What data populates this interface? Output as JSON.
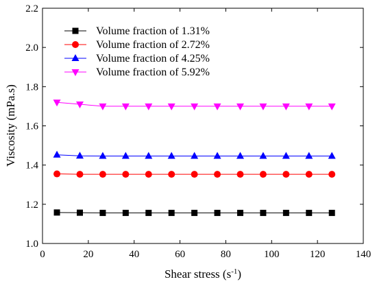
{
  "chart_data": {
    "type": "line",
    "title": "",
    "xlabel": "Shear stress (s",
    "xlabel_sup": "-1",
    "xlabel_suffix": ")",
    "ylabel": "Viscosity (mPa.s)",
    "xlim": [
      0,
      140
    ],
    "ylim": [
      1.0,
      2.2
    ],
    "xticks": [
      0,
      20,
      40,
      60,
      80,
      100,
      120,
      140
    ],
    "yticks": [
      1.0,
      1.2,
      1.4,
      1.6,
      1.8,
      2.0,
      2.2
    ],
    "grid": false,
    "legend_position": "top-left",
    "x": [
      6.3,
      16.3,
      26.3,
      36.3,
      46.3,
      56.3,
      66.3,
      76.3,
      86.3,
      96.3,
      106.3,
      116.3,
      126.3
    ],
    "series": [
      {
        "name": "Volume fraction of 1.31%",
        "color": "#000000",
        "marker": "square",
        "values": [
          1.158,
          1.157,
          1.156,
          1.156,
          1.156,
          1.156,
          1.156,
          1.156,
          1.156,
          1.156,
          1.156,
          1.156,
          1.156
        ]
      },
      {
        "name": "Volume fraction of 2.72%",
        "color": "#ff0000",
        "marker": "circle",
        "values": [
          1.355,
          1.353,
          1.353,
          1.353,
          1.353,
          1.353,
          1.353,
          1.353,
          1.353,
          1.353,
          1.353,
          1.353,
          1.353
        ]
      },
      {
        "name": "Volume fraction of 4.25%",
        "color": "#0000ff",
        "marker": "triangle-up",
        "values": [
          1.452,
          1.447,
          1.446,
          1.446,
          1.446,
          1.446,
          1.446,
          1.446,
          1.446,
          1.446,
          1.446,
          1.446,
          1.446
        ]
      },
      {
        "name": "Volume fraction of 5.92%",
        "color": "#ff00ff",
        "marker": "triangle-down",
        "values": [
          1.72,
          1.71,
          1.7,
          1.7,
          1.7,
          1.7,
          1.7,
          1.7,
          1.7,
          1.7,
          1.7,
          1.7,
          1.7
        ]
      }
    ]
  }
}
